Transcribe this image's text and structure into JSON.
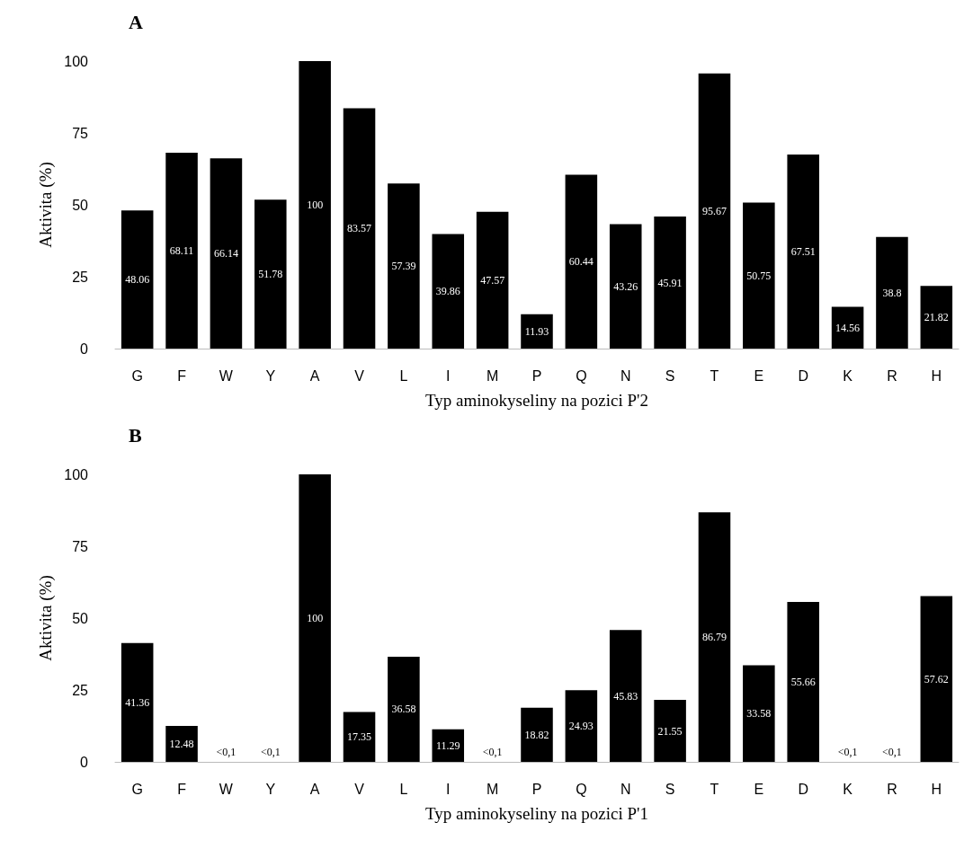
{
  "chart_data": [
    {
      "type": "bar",
      "title": "A",
      "xlabel": "Typ aminokyseliny na pozici P'2",
      "ylabel": "Aktivita (%)",
      "categories": [
        "G",
        "F",
        "W",
        "Y",
        "A",
        "V",
        "L",
        "I",
        "M",
        "P",
        "Q",
        "N",
        "S",
        "T",
        "E",
        "D",
        "K",
        "R",
        "H"
      ],
      "values": [
        48.06,
        68.11,
        66.14,
        51.78,
        100,
        83.57,
        57.39,
        39.86,
        47.57,
        11.93,
        60.44,
        43.26,
        45.91,
        95.67,
        50.75,
        67.51,
        14.56,
        38.8,
        21.82
      ],
      "color": "#000000",
      "ylim": [
        0,
        100
      ],
      "yticks": [
        0,
        25,
        50,
        75,
        100
      ],
      "grid": false,
      "data_labels": true
    },
    {
      "type": "bar",
      "title": "B",
      "xlabel": "Typ aminokyseliny na pozici P'1",
      "ylabel": "Aktivita (%)",
      "categories": [
        "G",
        "F",
        "W",
        "Y",
        "A",
        "V",
        "L",
        "I",
        "M",
        "P",
        "Q",
        "N",
        "S",
        "T",
        "E",
        "D",
        "K",
        "R",
        "H"
      ],
      "values": [
        41.36,
        12.48,
        0,
        0,
        100,
        17.35,
        36.58,
        11.29,
        0,
        18.82,
        24.93,
        45.83,
        21.55,
        86.79,
        33.58,
        55.66,
        0,
        0,
        57.62
      ],
      "value_labels": [
        "41.36",
        "12.48",
        "<0,1",
        "<0,1",
        "100",
        "17.35",
        "36.58",
        "11.29",
        "<0,1",
        "18.82",
        "24.93",
        "45.83",
        "21.55",
        "86.79",
        "33.58",
        "55.66",
        "<0,1",
        "<0,1",
        "57.62"
      ],
      "color": "#000000",
      "ylim": [
        0,
        100
      ],
      "yticks": [
        0,
        25,
        50,
        75,
        100
      ],
      "grid": false
    }
  ]
}
